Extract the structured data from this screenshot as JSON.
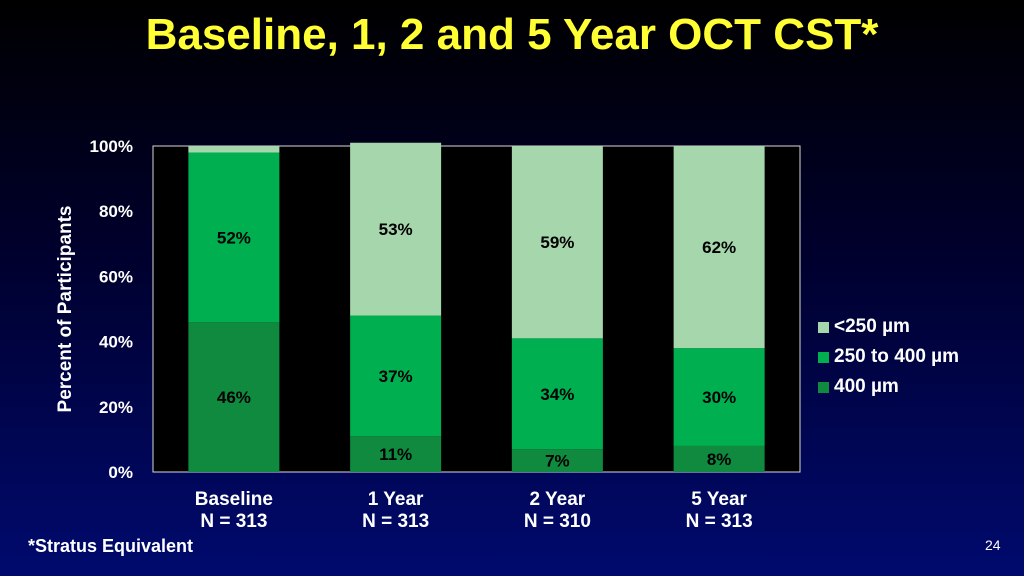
{
  "title": "Baseline, 1, 2 and 5 Year OCT CST*",
  "footnote": "*Stratus Equivalent",
  "page_number": "24",
  "chart_data": {
    "type": "bar",
    "stacked": true,
    "categories": [
      "Baseline",
      "1 Year",
      "2 Year",
      "5 Year"
    ],
    "category_counts": [
      "N = 313",
      "N = 313",
      "N = 310",
      "N = 313"
    ],
    "ylabel": "Percent of Participants",
    "xlabel": "",
    "ylim": [
      0,
      100
    ],
    "y_ticks": [
      0,
      20,
      40,
      60,
      80,
      100
    ],
    "y_tick_labels": [
      "0%",
      "20%",
      "40%",
      "60%",
      "80%",
      "100%"
    ],
    "legend_position": "right",
    "series": [
      {
        "name": "400 µm",
        "color": "#0f8a3e",
        "values": [
          46,
          11,
          7,
          8
        ],
        "labels": [
          "46%",
          "11%",
          "7%",
          "8%"
        ]
      },
      {
        "name": "250 to 400 µm",
        "color": "#00b050",
        "values": [
          52,
          37,
          34,
          30
        ],
        "labels": [
          "52%",
          "37%",
          "34%",
          "30%"
        ]
      },
      {
        "name": "<250 µm",
        "color": "#a6d6ac",
        "values": [
          2,
          53,
          59,
          62
        ],
        "labels": [
          "",
          "53%",
          "59%",
          "62%"
        ]
      }
    ],
    "plot_background": "#000000",
    "label_color": "#000000"
  }
}
